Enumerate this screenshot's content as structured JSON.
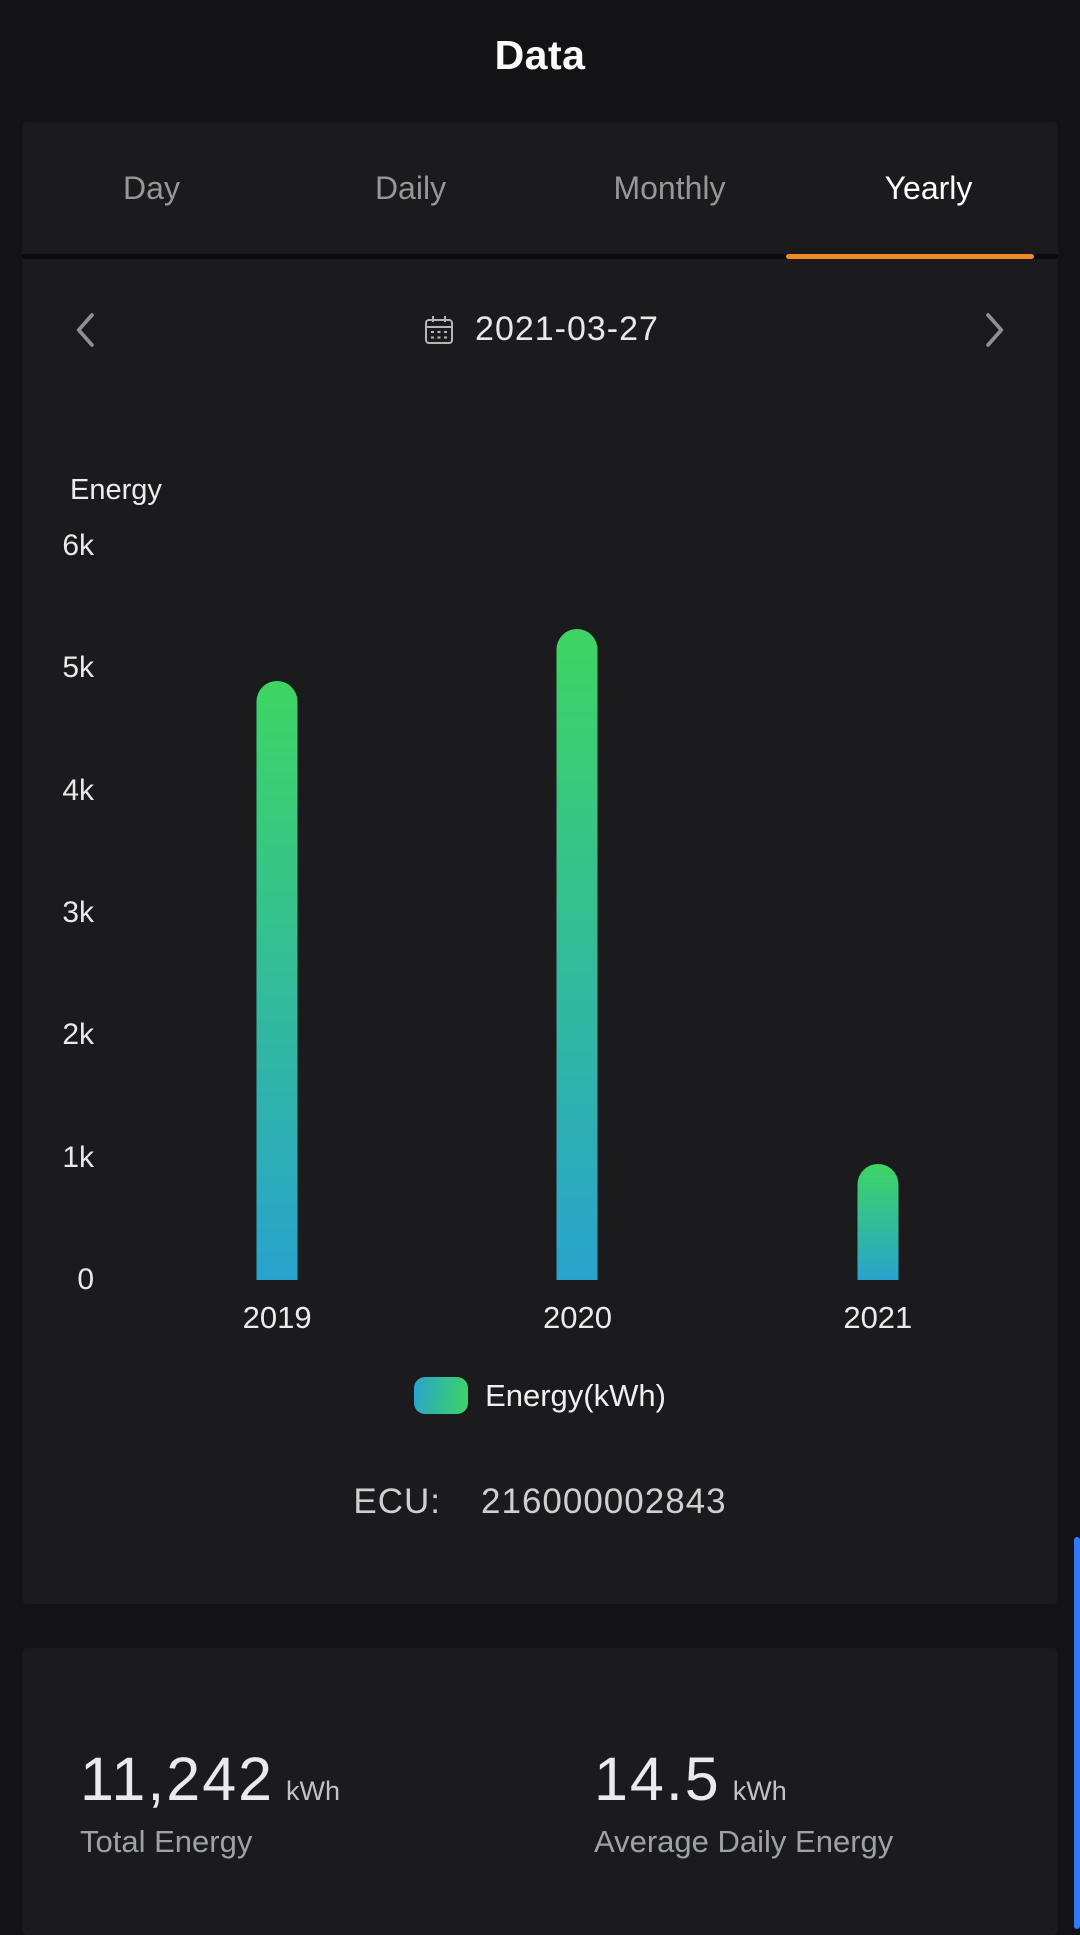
{
  "header": {
    "title": "Data"
  },
  "tabs": {
    "items": [
      {
        "label": "Day",
        "active": false
      },
      {
        "label": "Daily",
        "active": false
      },
      {
        "label": "Monthly",
        "active": false
      },
      {
        "label": "Yearly",
        "active": true
      }
    ]
  },
  "date_nav": {
    "value": "2021-03-27"
  },
  "chart_data": {
    "type": "bar",
    "title": "",
    "ylabel": "Energy",
    "xlabel": "",
    "categories": [
      "2019",
      "2020",
      "2021"
    ],
    "values": [
      4900,
      5320,
      950
    ],
    "series_name": "Energy(kWh)",
    "ylim": [
      0,
      6000
    ],
    "ytick_labels": [
      "6k",
      "5k",
      "4k",
      "3k",
      "2k",
      "1k",
      "0"
    ],
    "grid": false,
    "legend_position": "bottom"
  },
  "ecu": {
    "label": "ECU:",
    "value": "216000002843"
  },
  "stats": {
    "total_energy": {
      "value": "11,242",
      "unit": "kWh",
      "label": "Total Energy"
    },
    "average_daily_energy": {
      "value": "14.5",
      "unit": "kWh",
      "label": "Average Daily Energy"
    }
  },
  "colors": {
    "accent_orange": "#f08a24",
    "bar_top": "#3ed563",
    "bar_bottom": "#29a3cd",
    "scrollbar_blue": "#2f7bf7",
    "card_bg": "#1b1b1d",
    "page_bg": "#131315"
  }
}
